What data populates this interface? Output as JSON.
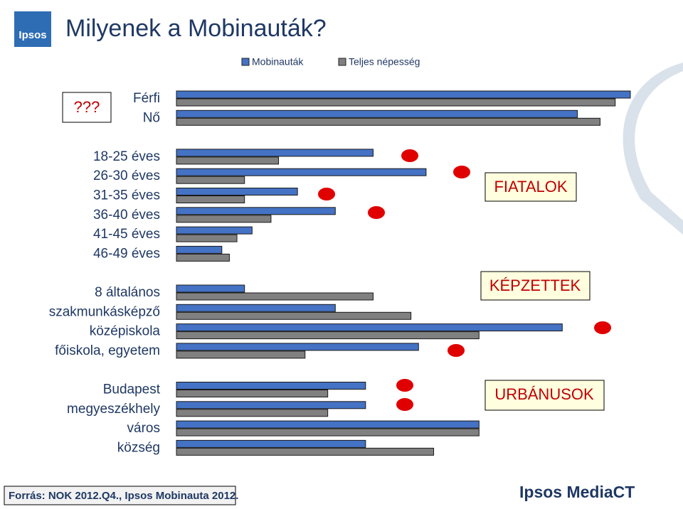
{
  "chart_data": {
    "type": "hbar",
    "title": "Milyenek a Mobinauták?",
    "categories": [
      "Férfi",
      "Nő",
      null,
      "18-25 éves",
      "26-30 éves",
      "31-35 éves",
      "36-40 éves",
      "41-45 éves",
      "46-49 éves",
      null,
      "8 általános",
      "szakmunkásképző",
      "középiskola",
      "főiskola, egyetem",
      null,
      "Budapest",
      "megyeszékhely",
      "város",
      "község"
    ],
    "series": [
      {
        "name": "Mobinauták",
        "color": "#4472c4",
        "values": [
          60,
          53,
          null,
          26,
          33,
          16,
          21,
          10,
          6,
          null,
          9,
          21,
          51,
          32,
          null,
          25,
          25,
          40,
          25
        ]
      },
      {
        "name": "Teljes népesség",
        "color": "#808080",
        "values": [
          58,
          56,
          null,
          13.5,
          9,
          9,
          12.5,
          8,
          7,
          null,
          26,
          31,
          40,
          17,
          null,
          20,
          20,
          40,
          34
        ]
      }
    ],
    "xlim": [
      0,
      60
    ],
    "annotations": [
      "???",
      "FIATALOK",
      "KÉPZETTEK",
      "URBÁNUSOK"
    ],
    "source": "Forrás: NOK 2012.Q4., Ipsos Mobinauta 2012.",
    "logos": [
      "Ipsos",
      "Ipsos MediaCT"
    ]
  }
}
